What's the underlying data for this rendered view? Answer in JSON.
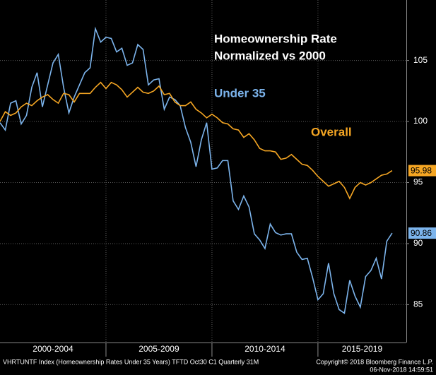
{
  "chart_data": {
    "type": "line",
    "title_lines": [
      "Homeownership Rate",
      "Normalized vs 2000"
    ],
    "x": [
      2000,
      2000.25,
      2000.5,
      2000.75,
      2001,
      2001.25,
      2001.5,
      2001.75,
      2002,
      2002.25,
      2002.5,
      2002.75,
      2003,
      2003.25,
      2003.5,
      2003.75,
      2004,
      2004.25,
      2004.5,
      2004.75,
      2005,
      2005.25,
      2005.5,
      2005.75,
      2006,
      2006.25,
      2006.5,
      2006.75,
      2007,
      2007.25,
      2007.5,
      2007.75,
      2008,
      2008.25,
      2008.5,
      2008.75,
      2009,
      2009.25,
      2009.5,
      2009.75,
      2010,
      2010.25,
      2010.5,
      2010.75,
      2011,
      2011.25,
      2011.5,
      2011.75,
      2012,
      2012.25,
      2012.5,
      2012.75,
      2013,
      2013.25,
      2013.5,
      2013.75,
      2014,
      2014.25,
      2014.5,
      2014.75,
      2015,
      2015.25,
      2015.5,
      2015.75,
      2016,
      2016.25,
      2016.5,
      2016.75,
      2017,
      2017.25,
      2017.5,
      2017.75,
      2018,
      2018.25,
      2018.5
    ],
    "series": [
      {
        "name": "Under 35",
        "color": "#7cb4ec",
        "values": [
          99.9,
          99.3,
          101.5,
          101.7,
          99.8,
          100.5,
          102.8,
          104.0,
          101.2,
          103.0,
          104.8,
          105.5,
          102.8,
          100.7,
          102.0,
          103.0,
          104.0,
          104.4,
          107.6,
          106.5,
          106.9,
          106.8,
          105.7,
          106.0,
          104.6,
          104.8,
          106.3,
          105.9,
          103.0,
          103.4,
          103.5,
          101.0,
          102.0,
          101.8,
          101.3,
          99.5,
          98.3,
          96.3,
          98.5,
          99.9,
          96.1,
          96.2,
          96.8,
          96.8,
          93.5,
          92.8,
          93.9,
          93.0,
          90.8,
          90.3,
          89.6,
          91.6,
          90.9,
          90.7,
          90.8,
          90.8,
          89.3,
          88.7,
          88.8,
          87.2,
          85.4,
          85.9,
          88.4,
          85.9,
          84.6,
          84.3,
          87.0,
          85.7,
          84.8,
          87.3,
          87.8,
          88.8,
          87.1,
          90.2,
          90.86
        ]
      },
      {
        "name": "Overall",
        "color": "#f5a623",
        "values": [
          100.0,
          100.8,
          100.5,
          100.7,
          101.2,
          101.5,
          101.3,
          101.7,
          102.0,
          102.2,
          101.8,
          101.5,
          102.3,
          102.2,
          101.6,
          102.3,
          102.3,
          102.3,
          102.8,
          103.2,
          102.7,
          103.2,
          103.0,
          102.6,
          102.0,
          102.4,
          102.8,
          102.4,
          102.3,
          102.5,
          102.9,
          102.2,
          102.3,
          101.6,
          101.3,
          101.3,
          101.6,
          101.0,
          100.7,
          100.3,
          100.6,
          100.3,
          99.9,
          99.8,
          99.4,
          99.3,
          98.7,
          99.0,
          98.5,
          97.8,
          97.6,
          97.6,
          97.5,
          96.9,
          97.0,
          97.3,
          96.9,
          96.5,
          96.4,
          96.0,
          95.5,
          95.1,
          94.7,
          94.9,
          95.1,
          94.6,
          93.7,
          94.6,
          95.0,
          94.8,
          95.0,
          95.3,
          95.6,
          95.7,
          95.98
        ]
      }
    ],
    "xlim": [
      2000,
      2019.17
    ],
    "xticks": [
      2005,
      2010,
      2015
    ],
    "x_bands": [
      {
        "label": "2000-2004",
        "start": 2000,
        "end": 2005
      },
      {
        "label": "2005-2009",
        "start": 2005,
        "end": 2010
      },
      {
        "label": "2010-2014",
        "start": 2010,
        "end": 2015
      },
      {
        "label": "2015-2019",
        "start": 2015,
        "end": 2019.17
      }
    ],
    "ylim": [
      81.9,
      109.95
    ],
    "yticks": [
      85,
      90,
      95,
      100,
      105
    ],
    "grid": true,
    "footer": [
      "VHRTUNTF Index (Homeownership Rates Under 35 Years) TFTD Oct30 C1  Quarterly 31M",
      "Copyright© 2018 Bloomberg Finance L.P.",
      "06-Nov-2018 14:59:51"
    ]
  }
}
